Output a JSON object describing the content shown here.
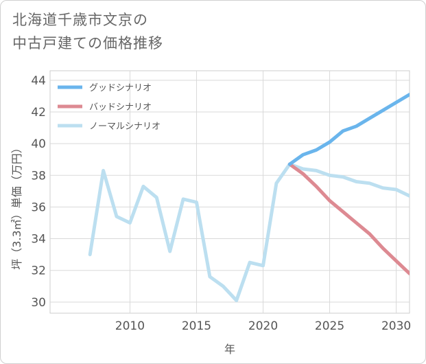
{
  "title": {
    "line1": "北海道千歳市文京の",
    "line2": "中古戸建ての価格推移"
  },
  "chart_data": {
    "type": "line",
    "xlabel": "年",
    "ylabel": "坪（3.3㎡）単価（万円）",
    "xlim": [
      2004,
      2031
    ],
    "ylim": [
      29.3,
      44.6
    ],
    "xticks": [
      2010,
      2015,
      2020,
      2025,
      2030
    ],
    "yticks": [
      30,
      32,
      34,
      36,
      38,
      40,
      42,
      44
    ],
    "grid": true,
    "legend_position": "top-left",
    "series": [
      {
        "name": "グッドシナリオ",
        "color": "#6ab5ec",
        "x": [
          2022,
          2023,
          2024,
          2025,
          2026,
          2027,
          2028,
          2029,
          2030,
          2031
        ],
        "y": [
          38.7,
          39.3,
          39.6,
          40.1,
          40.8,
          41.1,
          41.6,
          42.1,
          42.6,
          43.1
        ]
      },
      {
        "name": "バッドシナリオ",
        "color": "#dd8a92",
        "x": [
          2022,
          2023,
          2024,
          2025,
          2026,
          2027,
          2028,
          2029,
          2030,
          2031
        ],
        "y": [
          38.7,
          38.1,
          37.3,
          36.4,
          35.7,
          35.0,
          34.3,
          33.4,
          32.6,
          31.8
        ]
      },
      {
        "name": "ノーマルシナリオ",
        "color": "#bcdff0",
        "x": [
          2007,
          2008,
          2009,
          2010,
          2011,
          2012,
          2013,
          2014,
          2015,
          2016,
          2017,
          2018,
          2019,
          2020,
          2021,
          2022,
          2023,
          2024,
          2025,
          2026,
          2027,
          2028,
          2029,
          2030,
          2031
        ],
        "y": [
          33.0,
          38.3,
          35.4,
          35.0,
          37.3,
          36.6,
          33.2,
          36.5,
          36.3,
          31.6,
          31.0,
          30.1,
          32.5,
          32.3,
          37.5,
          38.7,
          38.4,
          38.3,
          38.0,
          37.9,
          37.6,
          37.5,
          37.2,
          37.1,
          36.7
        ]
      }
    ]
  }
}
